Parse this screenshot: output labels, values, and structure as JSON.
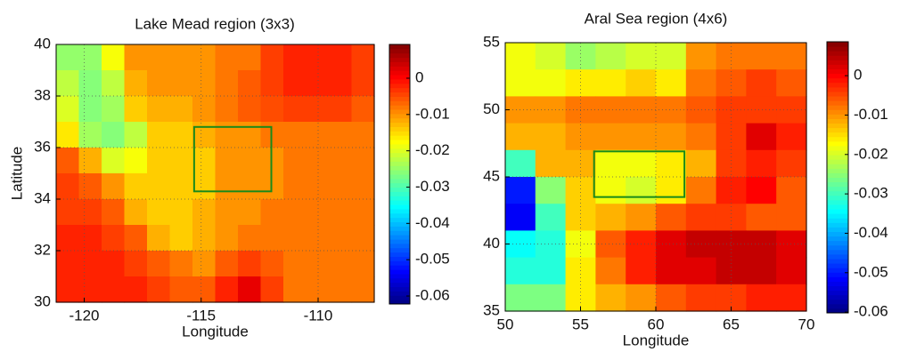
{
  "chart_data": [
    {
      "type": "heatmap",
      "title": "Lake Mead region (3x3)",
      "xlabel": "Longitude",
      "ylabel": "Latitude",
      "colormap": "jet",
      "grid": true,
      "xlim": [
        -121.2,
        -107.6
      ],
      "ylim": [
        30,
        40
      ],
      "xticks": [
        -120,
        -115,
        -110
      ],
      "yticks": [
        30,
        32,
        34,
        36,
        38,
        40
      ],
      "clim": [
        -0.0622,
        0.0093
      ],
      "cticks": [
        0,
        -0.01,
        -0.02,
        -0.03,
        -0.04,
        -0.05,
        -0.06
      ],
      "box": {
        "lon": [
          -115.3,
          -112
        ],
        "lat": [
          34.3,
          36.8
        ],
        "color": "#1a8a1a"
      },
      "values": [
        [
          -0.025,
          -0.025,
          -0.018,
          -0.01,
          -0.01,
          -0.01,
          -0.01,
          -0.008,
          -0.008,
          -0.004,
          -0.002,
          -0.002,
          -0.002,
          -0.004
        ],
        [
          -0.022,
          -0.026,
          -0.022,
          -0.012,
          -0.01,
          -0.01,
          -0.01,
          -0.008,
          -0.006,
          -0.004,
          -0.002,
          -0.002,
          -0.002,
          -0.004
        ],
        [
          -0.02,
          -0.026,
          -0.024,
          -0.014,
          -0.012,
          -0.012,
          -0.01,
          -0.008,
          -0.006,
          -0.005,
          -0.004,
          -0.004,
          -0.004,
          -0.006
        ],
        [
          -0.016,
          -0.024,
          -0.026,
          -0.022,
          -0.014,
          -0.014,
          -0.012,
          -0.01,
          -0.01,
          -0.008,
          -0.008,
          -0.008,
          -0.008,
          -0.008
        ],
        [
          -0.006,
          -0.012,
          -0.02,
          -0.018,
          -0.014,
          -0.014,
          -0.014,
          -0.01,
          -0.01,
          -0.01,
          -0.008,
          -0.008,
          -0.008,
          -0.008
        ],
        [
          -0.004,
          -0.006,
          -0.01,
          -0.014,
          -0.014,
          -0.014,
          -0.014,
          -0.01,
          -0.01,
          -0.01,
          -0.008,
          -0.008,
          -0.008,
          -0.008
        ],
        [
          -0.004,
          -0.004,
          -0.006,
          -0.012,
          -0.014,
          -0.014,
          -0.012,
          -0.01,
          -0.01,
          -0.008,
          -0.008,
          -0.008,
          -0.008,
          -0.008
        ],
        [
          -0.002,
          -0.002,
          -0.004,
          -0.006,
          -0.012,
          -0.014,
          -0.012,
          -0.01,
          -0.008,
          -0.008,
          -0.008,
          -0.008,
          -0.008,
          -0.008
        ],
        [
          -0.002,
          -0.002,
          -0.002,
          -0.004,
          -0.006,
          -0.008,
          -0.01,
          -0.006,
          -0.004,
          -0.006,
          -0.008,
          -0.008,
          -0.008,
          -0.008
        ],
        [
          -0.002,
          -0.002,
          -0.002,
          -0.002,
          -0.004,
          -0.006,
          -0.006,
          -0.002,
          0.002,
          -0.004,
          -0.008,
          -0.008,
          -0.008,
          -0.008
        ]
      ]
    },
    {
      "type": "heatmap",
      "title": "Aral Sea region (4x6)",
      "xlabel": "Longitude",
      "colormap": "jet",
      "grid": true,
      "xlim": [
        50,
        70
      ],
      "ylim": [
        35,
        55
      ],
      "xticks": [
        50,
        55,
        60,
        65,
        70
      ],
      "yticks": [
        35,
        40,
        45,
        50,
        55
      ],
      "clim": [
        -0.0602,
        0.0086
      ],
      "cticks": [
        0,
        -0.01,
        -0.02,
        -0.03,
        -0.04,
        -0.05,
        -0.06
      ],
      "box": {
        "lon": [
          55.9,
          61.9
        ],
        "lat": [
          43.5,
          46.9
        ],
        "color": "#1a8a1a"
      },
      "values": [
        [
          -0.018,
          -0.02,
          -0.024,
          -0.022,
          -0.02,
          -0.02,
          -0.01,
          -0.008,
          -0.008,
          -0.008
        ],
        [
          -0.018,
          -0.018,
          -0.016,
          -0.016,
          -0.014,
          -0.016,
          -0.008,
          -0.006,
          -0.004,
          -0.006
        ],
        [
          -0.01,
          -0.01,
          -0.008,
          -0.008,
          -0.008,
          -0.008,
          -0.006,
          -0.004,
          -0.004,
          -0.004
        ],
        [
          -0.012,
          -0.012,
          -0.01,
          -0.01,
          -0.01,
          -0.01,
          -0.008,
          -0.004,
          0.002,
          -0.002
        ],
        [
          -0.03,
          -0.012,
          -0.012,
          -0.018,
          -0.018,
          -0.016,
          -0.012,
          -0.004,
          -0.002,
          -0.004
        ],
        [
          -0.05,
          -0.025,
          -0.014,
          -0.018,
          -0.02,
          -0.016,
          -0.008,
          -0.002,
          0,
          -0.006
        ],
        [
          -0.052,
          -0.03,
          -0.014,
          -0.012,
          -0.01,
          -0.006,
          -0.004,
          -0.004,
          -0.006,
          -0.006
        ],
        [
          -0.034,
          -0.032,
          -0.018,
          -0.006,
          -0.002,
          0.002,
          0.004,
          0.004,
          0.004,
          0.002
        ],
        [
          -0.032,
          -0.032,
          -0.016,
          -0.008,
          -0.002,
          0.002,
          0.002,
          0.004,
          0.004,
          0.002
        ],
        [
          -0.026,
          -0.026,
          -0.016,
          -0.012,
          -0.01,
          -0.006,
          -0.004,
          -0.004,
          -0.002,
          -0.002
        ]
      ]
    }
  ]
}
